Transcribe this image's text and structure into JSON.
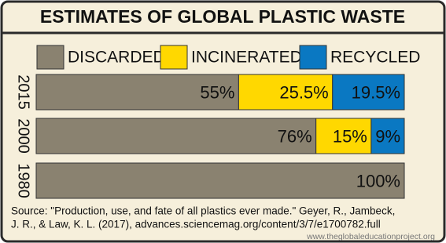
{
  "chart_data": {
    "type": "bar",
    "stacked": true,
    "orientation": "horizontal",
    "title": "ESTIMATES OF GLOBAL PLASTIC WASTE",
    "categories": [
      "2015",
      "2000",
      "1980"
    ],
    "series": [
      {
        "name": "DISCARDED",
        "color": "#8a8270",
        "values": [
          55,
          76,
          100
        ],
        "value_labels": [
          "55%",
          "76%",
          "100%"
        ]
      },
      {
        "name": "INCINERATED",
        "color": "#ffd800",
        "values": [
          25.5,
          15,
          null
        ],
        "value_labels": [
          "25.5%",
          "15%",
          null
        ]
      },
      {
        "name": "RECYCLED",
        "color": "#0a78c2",
        "values": [
          19.5,
          9,
          null
        ],
        "value_labels": [
          "19.5%",
          "9%",
          null
        ]
      }
    ],
    "xlim": [
      0,
      100
    ],
    "source": [
      "Source: \"Production, use, and fate of all plastics ever made.\" Geyer, R., Jambeck,",
      "J. R., & Law, K. L. (2017), advances.sciencemag.org/content/3/7/e1700782.full"
    ],
    "website": "www.theglobaleducationproject.org"
  }
}
